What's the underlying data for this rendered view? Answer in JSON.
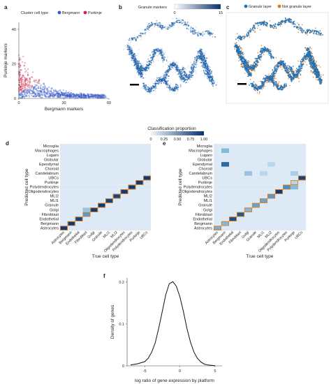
{
  "panels": {
    "a": {
      "letter": "a",
      "legend_title": "Cluster cell type",
      "legend_items": [
        {
          "label": "Bergmann",
          "color": "#3a59c4"
        },
        {
          "label": "Purkinje",
          "color": "#c42a4a"
        }
      ]
    },
    "b": {
      "letter": "b",
      "colorbar_label": "Granule markers",
      "colorbar_min": "0",
      "colorbar_max": "15",
      "scale_bar_color": "#000000",
      "tissue_color": "#1f5fa8"
    },
    "c": {
      "letter": "c",
      "legend_items": [
        {
          "label": "Granule layer",
          "color": "#1f6fb4"
        },
        {
          "label": "Not granule layer",
          "color": "#e07b1a"
        }
      ]
    },
    "d": {
      "letter": "d"
    },
    "e": {
      "letter": "e"
    },
    "f": {
      "letter": "f"
    }
  },
  "colorbar": {
    "title": "Classification proportion",
    "ticks": [
      "0",
      "0.25",
      "0.50",
      "0.75",
      "1.00"
    ],
    "low_color": "#eef4fb",
    "high_color": "#08306b"
  },
  "heatmap_rows": [
    "Microglia",
    "Macrophages",
    "Lugaro",
    "Globular",
    "Ependymal",
    "Choroid",
    "Candelabrum",
    "UBCs",
    "Purkinje",
    "Polydendrocytes",
    "Oligodendrocytes",
    "MLI2",
    "MLI1",
    "Granule",
    "Golgi",
    "Fibroblast",
    "Endothelial",
    "Bergmann",
    "Astrocytes"
  ],
  "heatmap_cols": [
    "Astrocytes",
    "Bergmann",
    "Endothelial",
    "Fibroblast",
    "Golgi",
    "Granule",
    "MLI1",
    "MLI2",
    "Oligodendrocytes",
    "Polydendrocytes",
    "Purkinje",
    "UBCs"
  ],
  "highlight_color": "#e07b1a",
  "chart_data": [
    {
      "panel": "a",
      "type": "scatter",
      "title": "",
      "xlabel": "Bergmann markers",
      "ylabel": "Purkinje markers",
      "x_ticks": [
        "0",
        "30",
        "60"
      ],
      "y_ticks": [
        "0",
        "20",
        "40"
      ],
      "xlim": [
        0,
        60
      ],
      "ylim": [
        0,
        44
      ],
      "series": [
        {
          "name": "Bergmann",
          "color": "#3a59c4"
        },
        {
          "name": "Purkinje",
          "color": "#c42a4a"
        }
      ]
    },
    {
      "panel": "d",
      "type": "heatmap",
      "xlabel": "True cell type",
      "ylabel": "Predicted cell type",
      "cells": [
        [
          "Astrocytes",
          "Astrocytes",
          0.95
        ],
        [
          "Bergmann",
          "Bergmann",
          0.95
        ],
        [
          "Endothelial",
          "Endothelial",
          0.9
        ],
        [
          "Fibroblast",
          "Fibroblast",
          0.45
        ],
        [
          "Fibroblast",
          "Golgi",
          0.25
        ],
        [
          "Golgi",
          "Golgi",
          0.95
        ],
        [
          "Granule",
          "Granule",
          0.95
        ],
        [
          "MLI1",
          "MLI1",
          0.9
        ],
        [
          "MLI2",
          "MLI2",
          0.9
        ],
        [
          "Oligodendrocytes",
          "Oligodendrocytes",
          0.95
        ],
        [
          "Polydendrocytes",
          "Polydendrocytes",
          0.95
        ],
        [
          "Purkinje",
          "Purkinje",
          0.95
        ],
        [
          "UBCs",
          "UBCs",
          0.95
        ]
      ]
    },
    {
      "panel": "e",
      "type": "heatmap",
      "xlabel": "True cell type",
      "ylabel": "Predicted cell type",
      "cells": [
        [
          "Astrocytes",
          "Astrocytes",
          0.35
        ],
        [
          "Bergmann",
          "Bergmann",
          0.3
        ],
        [
          "Bergmann",
          "Ependymal",
          0.7
        ],
        [
          "Bergmann",
          "Macrophages",
          0.3
        ],
        [
          "Endothelial",
          "Endothelial",
          0.85
        ],
        [
          "Fibroblast",
          "Fibroblast",
          0.8
        ],
        [
          "Golgi",
          "Golgi",
          0.3
        ],
        [
          "Golgi",
          "Candelabrum",
          0.25
        ],
        [
          "Granule",
          "Granule",
          0.4
        ],
        [
          "MLI1",
          "MLI1",
          0.4
        ],
        [
          "MLI1",
          "Candelabrum",
          0.15
        ],
        [
          "MLI2",
          "MLI2",
          0.45
        ],
        [
          "MLI2",
          "Ependymal",
          0.15
        ],
        [
          "Oligodendrocytes",
          "Oligodendrocytes",
          0.95
        ],
        [
          "Polydendrocytes",
          "Polydendrocytes",
          0.5
        ],
        [
          "Purkinje",
          "Purkinje",
          0.15
        ],
        [
          "Purkinje",
          "Polydendrocytes",
          0.3
        ],
        [
          "Purkinje",
          "Candelabrum",
          0.2
        ],
        [
          "UBCs",
          "UBCs",
          0.9
        ]
      ]
    },
    {
      "panel": "f",
      "type": "line",
      "xlabel": "log ratio of gene expression by platform",
      "ylabel": "Density of genes",
      "x_ticks": [
        "-5",
        "0",
        "5"
      ],
      "y_ticks": [
        "0",
        "0.1",
        "0.2"
      ],
      "xlim": [
        -7.5,
        6
      ],
      "ylim": [
        0,
        0.21
      ],
      "x": [
        -7,
        -6,
        -5,
        -4.5,
        -4,
        -3.5,
        -3,
        -2.5,
        -2,
        -1.5,
        -1,
        -0.5,
        0,
        0.5,
        1,
        1.5,
        2,
        2.5,
        3,
        3.5,
        4,
        5
      ],
      "y": [
        0.002,
        0.005,
        0.01,
        0.018,
        0.033,
        0.055,
        0.09,
        0.13,
        0.17,
        0.196,
        0.201,
        0.19,
        0.165,
        0.13,
        0.09,
        0.057,
        0.033,
        0.018,
        0.009,
        0.004,
        0.002,
        0.0005
      ]
    }
  ]
}
